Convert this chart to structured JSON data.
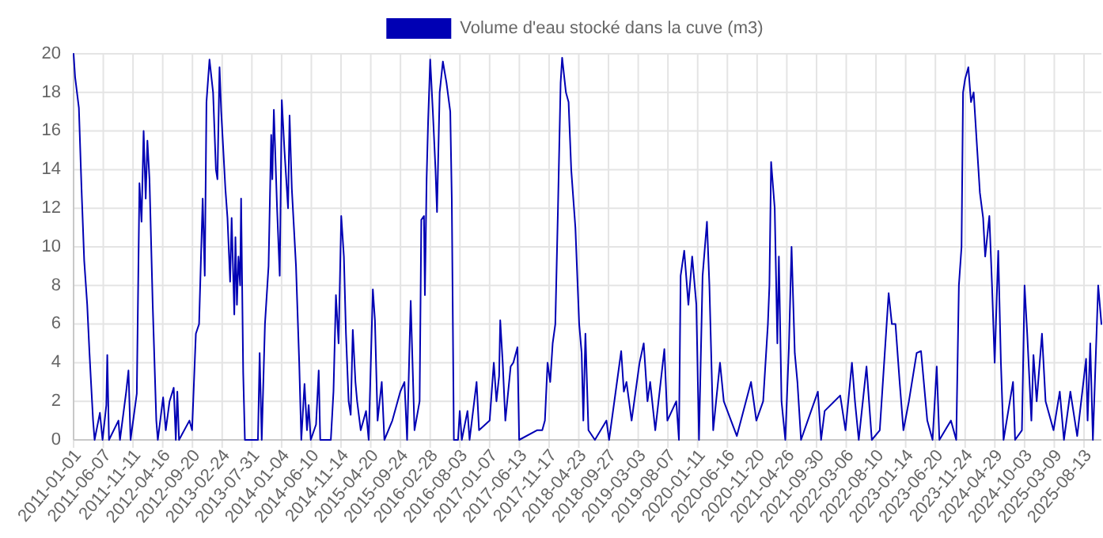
{
  "chart_data": {
    "type": "line",
    "xlim": [
      "2011-01-01",
      "2025-11-13"
    ],
    "ylim": [
      0,
      20
    ],
    "yticks": [
      0,
      2,
      4,
      6,
      8,
      10,
      12,
      14,
      16,
      18,
      20
    ],
    "xticks": [
      "2011-01-01",
      "2011-06-07",
      "2011-11-11",
      "2012-04-16",
      "2012-09-20",
      "2013-02-24",
      "2013-07-31",
      "2014-01-04",
      "2014-06-10",
      "2014-11-14",
      "2015-04-20",
      "2015-09-24",
      "2016-02-28",
      "2016-08-03",
      "2017-01-07",
      "2017-06-13",
      "2017-11-17",
      "2018-04-23",
      "2018-09-27",
      "2019-03-03",
      "2019-08-07",
      "2020-01-11",
      "2020-06-16",
      "2020-11-20",
      "2021-04-26",
      "2021-09-30",
      "2022-03-06",
      "2022-08-10",
      "2023-01-14",
      "2023-06-20",
      "2023-11-24",
      "2024-04-29",
      "2024-10-03",
      "2025-03-09",
      "2025-08-13"
    ],
    "grid": true,
    "legend": "top",
    "marker": "none",
    "line_style": "solid",
    "series": [
      {
        "name": "Volume d'eau stocké dans la cuve (m3)",
        "color": "#0000b4",
        "x": [
          "2011-01-01",
          "2011-01-09",
          "2011-01-29",
          "2011-02-12",
          "2011-02-26",
          "2011-03-14",
          "2011-03-26",
          "2011-04-03",
          "2011-04-14",
          "2011-04-22",
          "2011-05-20",
          "2011-06-03",
          "2011-06-23",
          "2011-06-28",
          "2011-07-07",
          "2011-08-26",
          "2011-09-03",
          "2011-10-06",
          "2011-10-18",
          "2011-10-29",
          "2011-12-01",
          "2011-12-15",
          "2011-12-26",
          "2012-01-06",
          "2012-01-17",
          "2012-01-26",
          "2012-02-06",
          "2012-02-23",
          "2012-03-13",
          "2012-03-21",
          "2012-04-18",
          "2012-05-02",
          "2012-05-22",
          "2012-06-13",
          "2012-06-24",
          "2012-07-02",
          "2012-07-11",
          "2012-09-04",
          "2012-09-18",
          "2012-10-08",
          "2012-10-25",
          "2012-11-13",
          "2012-11-24",
          "2012-12-03",
          "2012-12-19",
          "2013-01-07",
          "2013-01-22",
          "2013-01-30",
          "2013-02-10",
          "2013-02-19",
          "2013-03-13",
          "2013-03-24",
          "2013-04-07",
          "2013-04-15",
          "2013-04-29",
          "2013-05-05",
          "2013-05-13",
          "2013-05-21",
          "2013-05-30",
          "2013-06-04",
          "2013-06-15",
          "2013-06-24",
          "2013-09-01",
          "2013-09-10",
          "2013-09-21",
          "2013-10-08",
          "2013-10-27",
          "2013-11-10",
          "2013-11-16",
          "2013-11-24",
          "2013-12-11",
          "2013-12-25",
          "2014-01-05",
          "2014-01-19",
          "2014-02-07",
          "2014-02-15",
          "2014-02-27",
          "2014-03-21",
          "2014-04-07",
          "2014-04-18",
          "2014-05-05",
          "2014-05-18",
          "2014-05-27",
          "2014-06-07",
          "2014-07-05",
          "2014-07-19",
          "2014-07-27",
          "2014-09-21",
          "2014-10-05",
          "2014-10-18",
          "2014-11-01",
          "2014-11-15",
          "2014-11-29",
          "2014-12-10",
          "2014-12-24",
          "2015-01-04",
          "2015-01-15",
          "2015-01-29",
          "2015-02-07",
          "2015-02-26",
          "2015-03-26",
          "2015-04-09",
          "2015-05-01",
          "2015-05-12",
          "2015-05-26",
          "2015-06-17",
          "2015-07-01",
          "2015-08-12",
          "2015-09-23",
          "2015-10-15",
          "2015-10-29",
          "2015-11-17",
          "2015-12-07",
          "2016-01-03",
          "2016-01-12",
          "2016-01-26",
          "2016-01-31",
          "2016-02-09",
          "2016-02-17",
          "2016-02-28",
          "2016-03-13",
          "2016-03-27",
          "2016-04-04",
          "2016-04-18",
          "2016-05-05",
          "2016-05-24",
          "2016-06-13",
          "2016-06-21",
          "2016-07-02",
          "2016-07-24",
          "2016-08-02",
          "2016-08-13",
          "2016-09-12",
          "2016-09-23",
          "2016-10-30",
          "2016-11-12",
          "2017-01-07",
          "2017-01-29",
          "2017-02-12",
          "2017-02-26",
          "2017-03-04",
          "2017-03-17",
          "2017-03-31",
          "2017-04-28",
          "2017-05-12",
          "2017-06-03",
          "2017-06-12",
          "2017-09-14",
          "2017-10-12",
          "2017-10-26",
          "2017-11-09",
          "2017-11-23",
          "2017-12-06",
          "2017-12-20",
          "2018-01-03",
          "2018-01-17",
          "2018-01-25",
          "2018-02-14",
          "2018-02-28",
          "2018-03-14",
          "2018-04-05",
          "2018-04-25",
          "2018-05-08",
          "2018-05-17",
          "2018-05-28",
          "2018-06-13",
          "2018-07-17",
          "2018-09-16",
          "2018-09-30",
          "2018-12-03",
          "2018-12-17",
          "2018-12-31",
          "2019-01-27",
          "2019-03-10",
          "2019-04-01",
          "2019-04-21",
          "2019-05-05",
          "2019-06-01",
          "2019-07-19",
          "2019-08-04",
          "2019-09-20",
          "2019-10-04",
          "2019-10-13",
          "2019-11-01",
          "2019-11-23",
          "2019-12-13",
          "2020-01-04",
          "2020-01-18",
          "2020-02-06",
          "2020-02-29",
          "2020-03-13",
          "2020-04-02",
          "2020-05-08",
          "2020-05-28",
          "2020-08-05",
          "2020-10-19",
          "2020-11-16",
          "2020-12-22",
          "2021-01-16",
          "2021-01-24",
          "2021-02-02",
          "2021-02-21",
          "2021-03-07",
          "2021-03-15",
          "2021-03-29",
          "2021-04-18",
          "2021-05-07",
          "2021-05-21",
          "2021-06-07",
          "2021-06-21",
          "2021-07-10",
          "2021-10-07",
          "2021-10-24",
          "2021-11-12",
          "2022-02-02",
          "2022-03-02",
          "2022-04-05",
          "2022-04-21",
          "2022-05-11",
          "2022-06-21",
          "2022-07-19",
          "2022-08-30",
          "2022-10-16",
          "2022-11-02",
          "2022-11-21",
          "2022-12-13",
          "2023-01-02",
          "2023-01-31",
          "2023-03-13",
          "2023-04-05",
          "2023-05-08",
          "2023-06-05",
          "2023-06-27",
          "2023-07-11",
          "2023-09-10",
          "2023-10-08",
          "2023-10-22",
          "2023-11-05",
          "2023-11-13",
          "2023-11-24",
          "2023-12-11",
          "2023-12-25",
          "2024-01-08",
          "2024-01-27",
          "2024-02-10",
          "2024-02-27",
          "2024-03-09",
          "2024-03-31",
          "2024-04-14",
          "2024-04-28",
          "2024-05-17",
          "2024-05-31",
          "2024-06-14",
          "2024-08-03",
          "2024-08-14",
          "2024-09-19",
          "2024-10-03",
          "2024-10-17",
          "2024-11-08",
          "2024-11-19",
          "2024-12-06",
          "2025-01-03",
          "2025-01-22",
          "2025-03-05",
          "2025-04-07",
          "2025-04-29",
          "2025-06-02",
          "2025-07-08",
          "2025-08-24",
          "2025-09-01",
          "2025-09-15",
          "2025-09-29",
          "2025-10-27",
          "2025-11-13"
        ],
        "values": [
          20,
          18.8,
          17.2,
          13,
          9.3,
          7,
          4.5,
          3,
          1,
          0,
          1.4,
          0,
          1.8,
          4.4,
          0,
          1,
          0,
          2.5,
          3.6,
          0,
          2.4,
          13.3,
          11.3,
          16,
          12.5,
          15.5,
          13.5,
          7,
          1,
          0,
          2.2,
          0.5,
          2,
          2.7,
          0,
          2.5,
          0,
          1,
          0.5,
          5.5,
          6,
          12.5,
          8.5,
          17.5,
          19.7,
          18,
          14,
          13.5,
          19.3,
          17,
          13,
          11.5,
          8.2,
          11.5,
          6.5,
          10.5,
          7,
          9.5,
          8,
          12.5,
          3.5,
          0,
          0,
          4.5,
          0,
          6,
          9,
          15.8,
          13.5,
          17.1,
          12,
          8.5,
          17.6,
          15,
          12,
          16.8,
          13,
          9,
          4,
          0,
          2.9,
          0.5,
          1.8,
          0,
          0.8,
          3.6,
          0,
          0,
          2.5,
          7.5,
          5,
          11.6,
          9.5,
          5.5,
          2,
          1.3,
          5.7,
          3,
          2,
          0.5,
          1.5,
          0,
          7.8,
          6.2,
          1,
          3,
          0,
          1,
          2.5,
          3,
          0,
          7.2,
          0.5,
          2,
          11.4,
          11.6,
          7.5,
          13.5,
          16.5,
          19.7,
          17,
          14,
          11.8,
          18,
          19.6,
          18.5,
          17,
          12.5,
          0,
          0,
          1.5,
          0,
          1.5,
          0,
          3,
          0.5,
          1,
          4,
          2,
          3.3,
          6.2,
          4,
          1,
          3.8,
          4,
          4.8,
          0,
          0.5,
          0.5,
          1,
          4,
          3,
          5,
          6,
          12,
          18.5,
          19.8,
          18,
          17.5,
          14,
          11,
          6,
          4.5,
          1,
          5.5,
          0.5,
          0,
          1,
          0,
          4.6,
          2.5,
          3,
          1,
          4,
          5,
          2,
          3,
          0.5,
          4.7,
          1,
          2,
          0,
          8.5,
          9.8,
          7,
          9.5,
          7,
          0,
          8.5,
          11.3,
          8,
          0.5,
          4,
          2,
          0.2,
          3,
          1,
          2,
          6,
          8,
          14.4,
          12,
          5,
          9.5,
          2,
          0,
          4.8,
          10,
          4.5,
          3,
          0,
          2.5,
          0,
          1.5,
          2.3,
          0.5,
          4,
          2,
          0,
          3.8,
          0,
          0.5,
          7.6,
          6,
          6,
          3,
          0.5,
          2,
          4.5,
          4.6,
          1,
          0,
          3.8,
          0,
          1,
          0,
          8,
          10,
          18,
          18.7,
          19.3,
          17.5,
          18,
          15,
          12.8,
          11.5,
          9.5,
          11.6,
          8,
          4,
          9.8,
          4,
          0,
          3,
          0,
          0.5,
          8,
          5.5,
          1,
          4.4,
          2,
          5.5,
          2,
          0.5,
          2.5,
          0,
          2.5,
          0.2,
          4.2,
          1,
          5,
          0,
          8,
          6
        ]
      }
    ]
  }
}
